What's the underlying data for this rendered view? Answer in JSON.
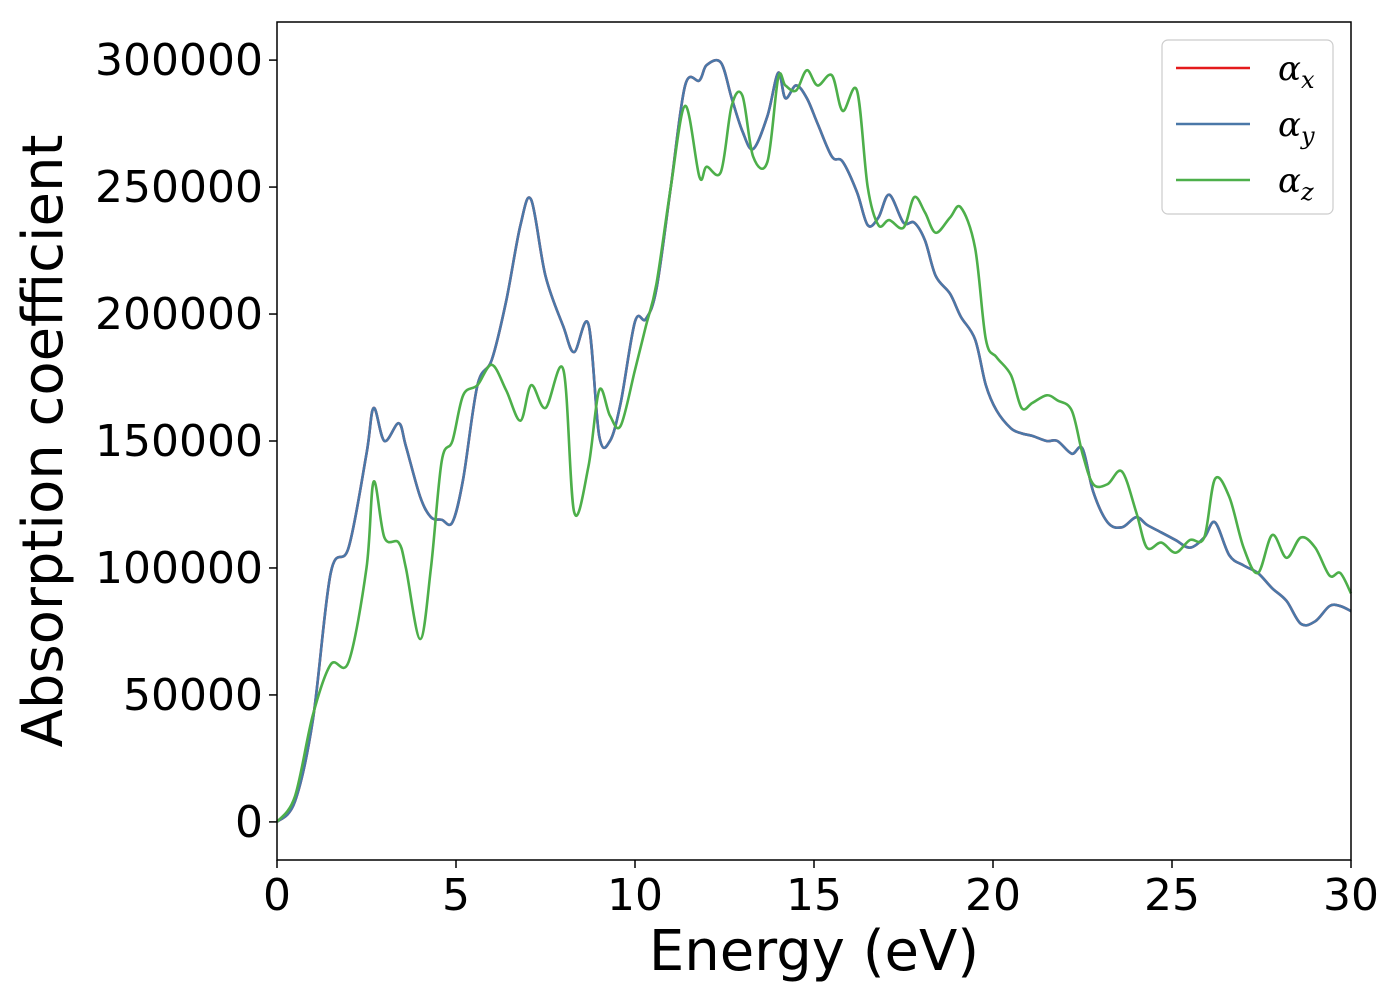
{
  "chart_data": {
    "type": "line",
    "xlabel": "Energy (eV)",
    "ylabel": "Absorption coefficient",
    "xlim": [
      0,
      30
    ],
    "ylim": [
      -15000,
      315000
    ],
    "xticks": [
      0,
      5,
      10,
      15,
      20,
      25,
      30
    ],
    "yticks": [
      0,
      50000,
      100000,
      150000,
      200000,
      250000,
      300000
    ],
    "xtick_labels": [
      "0",
      "5",
      "10",
      "15",
      "20",
      "25",
      "30"
    ],
    "ytick_labels": [
      "0",
      "50000",
      "100000",
      "150000",
      "200000",
      "250000",
      "300000"
    ],
    "grid": false,
    "legend_position": "top-right",
    "x": [
      0,
      0.5,
      1.0,
      1.5,
      2.0,
      2.5,
      2.7,
      3.0,
      3.4,
      3.6,
      4.0,
      4.3,
      4.6,
      4.9,
      5.2,
      5.6,
      6.0,
      6.4,
      6.8,
      7.1,
      7.5,
      8.0,
      8.3,
      8.7,
      9.0,
      9.3,
      9.6,
      10.0,
      10.3,
      10.6,
      11.0,
      11.4,
      11.8,
      12.0,
      12.4,
      12.7,
      13.0,
      13.3,
      13.7,
      14.0,
      14.2,
      14.5,
      14.8,
      15.1,
      15.5,
      15.8,
      16.2,
      16.5,
      16.8,
      17.1,
      17.5,
      17.8,
      18.1,
      18.4,
      18.8,
      19.1,
      19.5,
      19.8,
      20.1,
      20.5,
      20.8,
      21.1,
      21.5,
      21.8,
      22.2,
      22.5,
      22.8,
      23.2,
      23.6,
      24.0,
      24.3,
      24.7,
      25.1,
      25.5,
      25.9,
      26.2,
      26.6,
      27.0,
      27.4,
      27.8,
      28.2,
      28.6,
      29.0,
      29.4,
      29.7,
      30.0
    ],
    "series": [
      {
        "name": "αx",
        "color": "#e41a1c",
        "values": [
          0,
          8000,
          40000,
          98000,
          108000,
          145000,
          163000,
          150000,
          157000,
          148000,
          128000,
          120000,
          119000,
          118000,
          135000,
          172000,
          182000,
          205000,
          235000,
          245000,
          215000,
          195000,
          185000,
          196000,
          152000,
          150000,
          165000,
          197000,
          198000,
          210000,
          250000,
          290000,
          292000,
          298000,
          299000,
          285000,
          272000,
          265000,
          278000,
          295000,
          285000,
          290000,
          285000,
          275000,
          262000,
          260000,
          248000,
          235000,
          238000,
          247000,
          236000,
          236000,
          229000,
          215000,
          208000,
          199000,
          190000,
          172000,
          162000,
          155000,
          153000,
          152000,
          150000,
          150000,
          145000,
          147000,
          130000,
          118000,
          116000,
          120000,
          117000,
          114000,
          111000,
          108000,
          112000,
          118000,
          105000,
          101000,
          98000,
          92000,
          87000,
          78000,
          79000,
          85000,
          85000,
          83000
        ]
      },
      {
        "name": "αy",
        "color": "#4a78a8",
        "values": [
          0,
          8000,
          40000,
          98000,
          108000,
          145000,
          163000,
          150000,
          157000,
          148000,
          128000,
          120000,
          119000,
          118000,
          135000,
          172000,
          182000,
          205000,
          235000,
          245000,
          215000,
          195000,
          185000,
          196000,
          152000,
          150000,
          165000,
          197000,
          198000,
          210000,
          250000,
          290000,
          292000,
          298000,
          299000,
          285000,
          272000,
          265000,
          278000,
          295000,
          285000,
          290000,
          285000,
          275000,
          262000,
          260000,
          248000,
          235000,
          238000,
          247000,
          236000,
          236000,
          229000,
          215000,
          208000,
          199000,
          190000,
          172000,
          162000,
          155000,
          153000,
          152000,
          150000,
          150000,
          145000,
          147000,
          130000,
          118000,
          116000,
          120000,
          117000,
          114000,
          111000,
          108000,
          112000,
          118000,
          105000,
          101000,
          98000,
          92000,
          87000,
          78000,
          79000,
          85000,
          85000,
          83000
        ]
      },
      {
        "name": "αz",
        "color": "#4daf4a",
        "values": [
          0,
          10000,
          42000,
          62000,
          63000,
          100000,
          134000,
          112000,
          110000,
          100000,
          72000,
          100000,
          142000,
          150000,
          168000,
          172000,
          180000,
          170000,
          158000,
          172000,
          163000,
          178000,
          122000,
          140000,
          170000,
          160000,
          156000,
          178000,
          195000,
          212000,
          250000,
          282000,
          254000,
          258000,
          256000,
          282000,
          286000,
          262000,
          260000,
          293000,
          290000,
          288000,
          296000,
          290000,
          294000,
          280000,
          288000,
          250000,
          235000,
          237000,
          234000,
          246000,
          240000,
          232000,
          238000,
          242000,
          226000,
          190000,
          183000,
          176000,
          163000,
          165000,
          168000,
          166000,
          162000,
          145000,
          133000,
          133000,
          138000,
          122000,
          108000,
          110000,
          106000,
          111000,
          112000,
          135000,
          128000,
          108000,
          98000,
          113000,
          104000,
          112000,
          108000,
          97000,
          98000,
          90000
        ]
      }
    ]
  }
}
